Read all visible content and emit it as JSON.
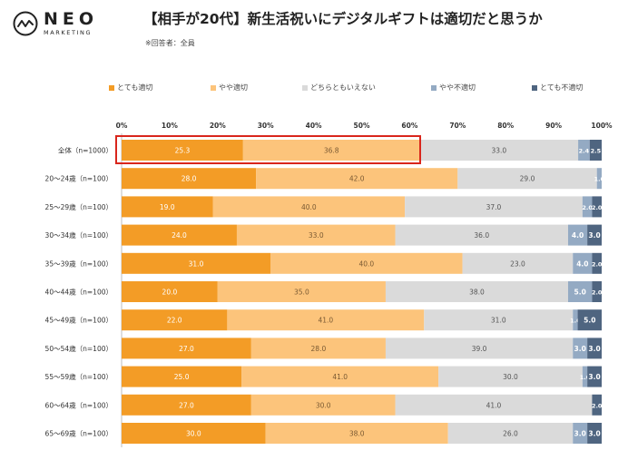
{
  "header": {
    "logo_main": "NEO",
    "logo_sub": "MARKETING",
    "title": "【相手が20代】新生活祝いにデジタルギフトは適切だと思うか",
    "note": "※回答者：全員"
  },
  "colors": {
    "s1": "#f39c26",
    "s2": "#fcc47b",
    "s3": "#dadada",
    "s4": "#94aac3",
    "s5": "#4f6580",
    "highlight": "#d9261c"
  },
  "chart_data": {
    "type": "bar",
    "orientation": "horizontal-stacked-100",
    "categories": [
      "全体（n=1000）",
      "20～24歳（n=100）",
      "25～29歳（n=100）",
      "30～34歳（n=100）",
      "35～39歳（n=100）",
      "40～44歳（n=100）",
      "45～49歳（n=100）",
      "50～54歳（n=100）",
      "55～59歳（n=100）",
      "60～64歳（n=100）",
      "65～69歳（n=100）"
    ],
    "series": [
      {
        "name": "とても適切",
        "values": [
          25.3,
          28.0,
          19.0,
          24.0,
          31.0,
          20.0,
          22.0,
          27.0,
          25.0,
          27.0,
          30.0
        ]
      },
      {
        "name": "やや適切",
        "values": [
          36.8,
          42.0,
          40.0,
          33.0,
          40.0,
          35.0,
          41.0,
          28.0,
          41.0,
          30.0,
          38.0
        ]
      },
      {
        "name": "どちらともいえない",
        "values": [
          33.0,
          29.0,
          37.0,
          36.0,
          23.0,
          38.0,
          31.0,
          39.0,
          30.0,
          41.0,
          26.0
        ]
      },
      {
        "name": "やや不適切",
        "values": [
          2.4,
          1.0,
          2.0,
          4.0,
          4.0,
          5.0,
          1.0,
          3.0,
          1.0,
          0.0,
          3.0
        ]
      },
      {
        "name": "とても不適切",
        "values": [
          2.5,
          0.0,
          2.0,
          3.0,
          2.0,
          2.0,
          5.0,
          3.0,
          3.0,
          2.0,
          3.0
        ]
      }
    ],
    "xticks": [
      "0%",
      "10%",
      "20%",
      "30%",
      "40%",
      "50%",
      "60%",
      "70%",
      "80%",
      "90%",
      "100%"
    ],
    "xlim": [
      0,
      100
    ],
    "legend": "top",
    "highlighted_category": "全体（n=1000）"
  }
}
